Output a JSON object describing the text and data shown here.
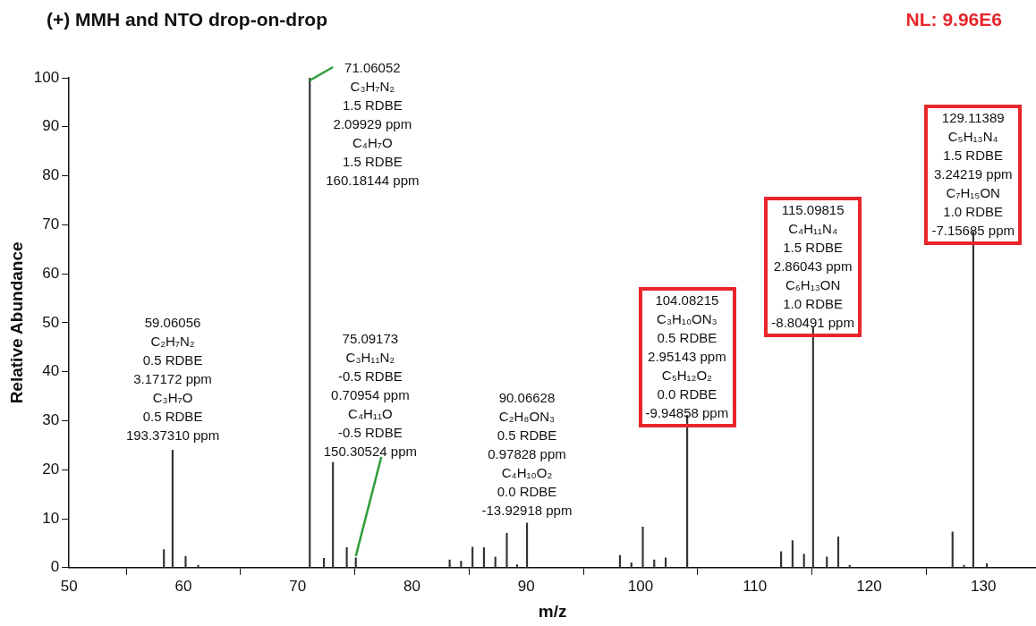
{
  "chart_data": {
    "type": "bar",
    "title": "(+) MMH and NTO drop-on-drop",
    "xlabel": "m/z",
    "ylabel": "Relative Abundance",
    "x": [
      58.3,
      59.06056,
      60.2,
      61.3,
      71.06052,
      72.3,
      73.09,
      74.3,
      75.09173,
      83.3,
      84.3,
      85.3,
      86.3,
      87.3,
      88.3,
      89.2,
      90.06628,
      98.2,
      99.2,
      100.2,
      101.2,
      102.2,
      104.08215,
      112.3,
      113.3,
      114.3,
      115.09815,
      116.3,
      117.3,
      118.3,
      127.3,
      128.3,
      129.11389,
      130.3
    ],
    "values": [
      3.7,
      24.0,
      2.3,
      0.5,
      100,
      1.9,
      21.5,
      4.1,
      2.0,
      1.6,
      1.3,
      4.2,
      4.1,
      2.2,
      7.0,
      0.6,
      9.1,
      2.5,
      1.0,
      8.3,
      1.6,
      2.0,
      31.1,
      3.3,
      5.5,
      2.8,
      49.0,
      2.2,
      6.3,
      0.5,
      7.3,
      0.5,
      68.6,
      0.8
    ],
    "color": "#333333",
    "xlim": [
      50,
      134.6
    ],
    "xticks": [
      50,
      60,
      70,
      80,
      90,
      100,
      110,
      120,
      130
    ],
    "ylim": [
      0,
      100
    ],
    "yticks": [
      0,
      10,
      20,
      30,
      40,
      50,
      60,
      70,
      80,
      90,
      100
    ],
    "grid": false,
    "legend": false,
    "annotations": [
      "NL: 9.96E6",
      {
        "text": "59.06056\nC₂H₇N₂\n0.5 RDBE\n3.17172 ppm\nC₃H₇O\n0.5 RDBE\n193.37310 ppm",
        "x": 59.06056,
        "y": 24.0
      },
      {
        "text": "71.06052\nC₃H₇N₂\n1.5 RDBE\n2.09929 ppm\nC₄H₇O\n1.5 RDBE\n160.18144 ppm",
        "x": 71.06052,
        "y": 100
      },
      {
        "text": "75.09173\nC₃H₁₁N₂\n-0.5 RDBE\n0.70954 ppm\nC₄H₁₁O\n-0.5 RDBE\n150.30524 ppm",
        "x": 75.09173,
        "y": 2.0
      },
      {
        "text": "90.06628\nC₂H₈ON₃\n0.5 RDBE\n0.97828 ppm\nC₄H₁₀O₂\n0.0 RDBE\n-13.92918 ppm",
        "x": 90.06628,
        "y": 9.1
      },
      {
        "text": "104.08215\nC₃H₁₀ON₃\n0.5 RDBE\n2.95143 ppm\nC₅H₁₂O₂\n0.0 RDBE\n-9.94858 ppm",
        "x": 104.08215,
        "y": 31.1
      },
      {
        "text": "115.09815\nC₄H₁₁N₄\n1.5 RDBE\n2.86043 ppm\nC₆H₁₃ON\n1.0 RDBE\n-8.80491 ppm",
        "x": 115.09815,
        "y": 49.0
      },
      {
        "text": "129.11389\nC₅H₁₃N₄\n1.5 RDBE\n3.24219 ppm\nC₇H₁₅ON\n1.0 RDBE\n-7.15685 ppm",
        "x": 129.11389,
        "y": 68.6
      }
    ]
  }
}
